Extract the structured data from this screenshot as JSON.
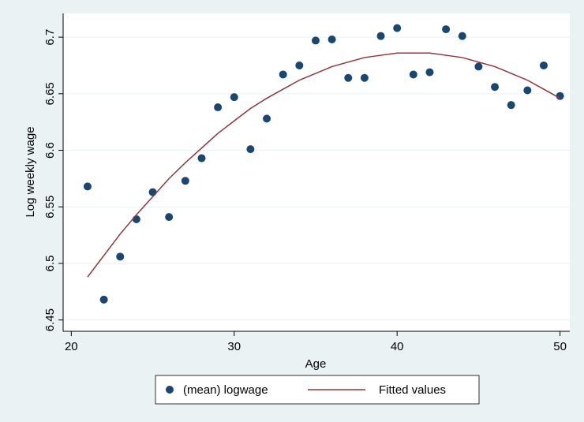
{
  "chart_data": {
    "type": "scatter",
    "x_label": "Age",
    "y_label": "Log weekly wage",
    "x": [
      21,
      22,
      23,
      24,
      25,
      26,
      27,
      28,
      29,
      30,
      31,
      32,
      33,
      34,
      35,
      36,
      37,
      38,
      39,
      40,
      41,
      42,
      43,
      44,
      45,
      46,
      47,
      48,
      49,
      50
    ],
    "series": [
      {
        "name": "(mean) logwage",
        "kind": "scatter",
        "color": "#1a476f",
        "values": [
          6.568,
          6.468,
          6.506,
          6.539,
          6.563,
          6.541,
          6.573,
          6.593,
          6.638,
          6.647,
          6.601,
          6.628,
          6.667,
          6.675,
          6.697,
          6.698,
          6.664,
          6.664,
          6.701,
          6.708,
          6.667,
          6.669,
          6.707,
          6.701,
          6.674,
          6.656,
          6.64,
          6.653,
          6.675,
          6.648
        ]
      },
      {
        "name": "Fitted values",
        "kind": "line",
        "color": "#90353b",
        "values": [
          6.488,
          6.507,
          6.526,
          6.543,
          6.559,
          6.575,
          6.589,
          6.602,
          6.615,
          6.626,
          6.637,
          6.646,
          6.654,
          6.662,
          6.668,
          6.674,
          6.678,
          6.682,
          6.684,
          6.686,
          6.686,
          6.686,
          6.684,
          6.682,
          6.678,
          6.674,
          6.668,
          6.662,
          6.654,
          6.646
        ]
      }
    ],
    "xlim": [
      19.5,
      50.6
    ],
    "xticks": [
      20,
      30,
      40,
      50
    ],
    "ylim": [
      6.44,
      6.721
    ],
    "yticks": [
      6.45,
      6.5,
      6.55,
      6.6,
      6.65,
      6.7
    ],
    "grid": true,
    "legend": "bottom"
  }
}
